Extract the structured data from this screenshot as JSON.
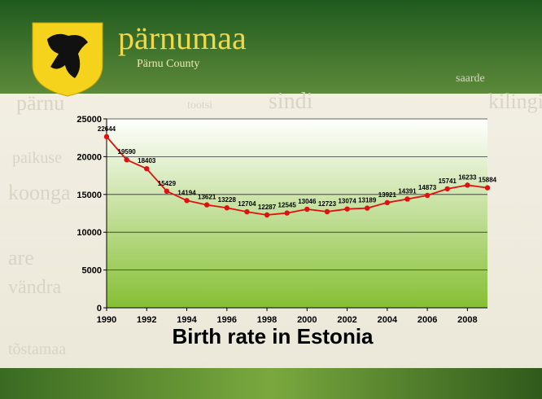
{
  "header": {
    "title": "pärnumaa",
    "subtitle": "Pärnu County"
  },
  "background_words": [
    "saarde",
    "pärnu",
    "tootsi",
    "sindi",
    "kilingi-nõmme",
    "paikuse",
    "koonga",
    "are",
    "vändra",
    "tõstamaa"
  ],
  "chart_data": {
    "type": "line",
    "title": "Birth rate in Estonia",
    "x": [
      1990,
      1991,
      1992,
      1993,
      1994,
      1995,
      1996,
      1997,
      1998,
      1999,
      2000,
      2001,
      2002,
      2003,
      2004,
      2005,
      2006,
      2007,
      2008,
      2009
    ],
    "values": [
      22644,
      19590,
      18403,
      15429,
      14194,
      13621,
      13228,
      12704,
      12287,
      12545,
      13046,
      12723,
      13074,
      13189,
      13921,
      14391,
      14873,
      15741,
      16233,
      15884
    ],
    "color": "#e01010",
    "xlim": [
      1990,
      2009
    ],
    "xticks": [
      1990,
      1992,
      1994,
      1996,
      1998,
      2000,
      2002,
      2004,
      2006,
      2008
    ],
    "ylim": [
      0,
      25000
    ],
    "yticks": [
      0,
      5000,
      10000,
      15000,
      20000,
      25000
    ],
    "grid": true
  }
}
